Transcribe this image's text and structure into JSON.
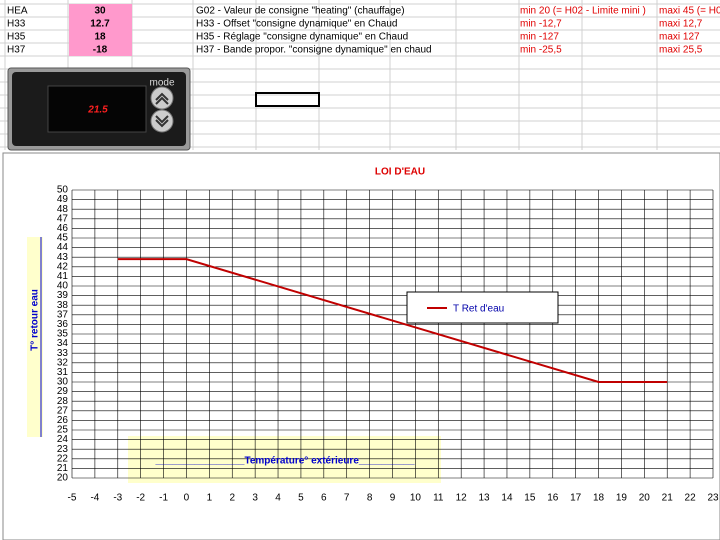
{
  "table": {
    "rows": [
      [
        "HEA",
        30,
        "G02 - Valeur de consigne \"heating\" (chauffage)",
        "min 20  (= H02 - Limite mini )",
        "maxi 45 (= H0"
      ],
      [
        "H33",
        12.7,
        "H33 - Offset \"consigne dynamique\" en Chaud",
        "min -12,7",
        "maxi 12,7"
      ],
      [
        "H35",
        18,
        "H35 - Réglage \"consigne dynamique\" en Chaud",
        "min -127",
        "maxi 127"
      ],
      [
        "H37",
        -18,
        "H37 - Bande propor. \"consigne dynamique\" en chaud",
        "min -25,5",
        "maxi 25,5"
      ]
    ]
  },
  "controller": {
    "display": "21.5",
    "mode": "mode"
  },
  "chart_data": {
    "type": "line",
    "title": "LOI  D'EAU",
    "x_label": "________________Température° extérieure__________",
    "y_label": "T° retour eau",
    "series": [
      {
        "name": "T Ret d'eau",
        "color": "#c00000",
        "x": [
          -3,
          0,
          18,
          21
        ],
        "values": [
          42.8,
          42.8,
          30,
          30
        ]
      }
    ],
    "xlim": [
      -5,
      23
    ],
    "xticks": [
      -5,
      -4,
      -3,
      -2,
      -1,
      0,
      1,
      2,
      3,
      4,
      5,
      6,
      7,
      8,
      9,
      10,
      11,
      12,
      13,
      14,
      15,
      16,
      17,
      18,
      19,
      20,
      21,
      22,
      23
    ],
    "ylim": [
      20,
      50
    ],
    "yticks": [
      20,
      21,
      22,
      23,
      24,
      25,
      26,
      27,
      28,
      29,
      30,
      31,
      32,
      33,
      34,
      35,
      36,
      37,
      38,
      39,
      40,
      41,
      42,
      43,
      44,
      45,
      46,
      47,
      48,
      49,
      50
    ],
    "grid": true
  }
}
